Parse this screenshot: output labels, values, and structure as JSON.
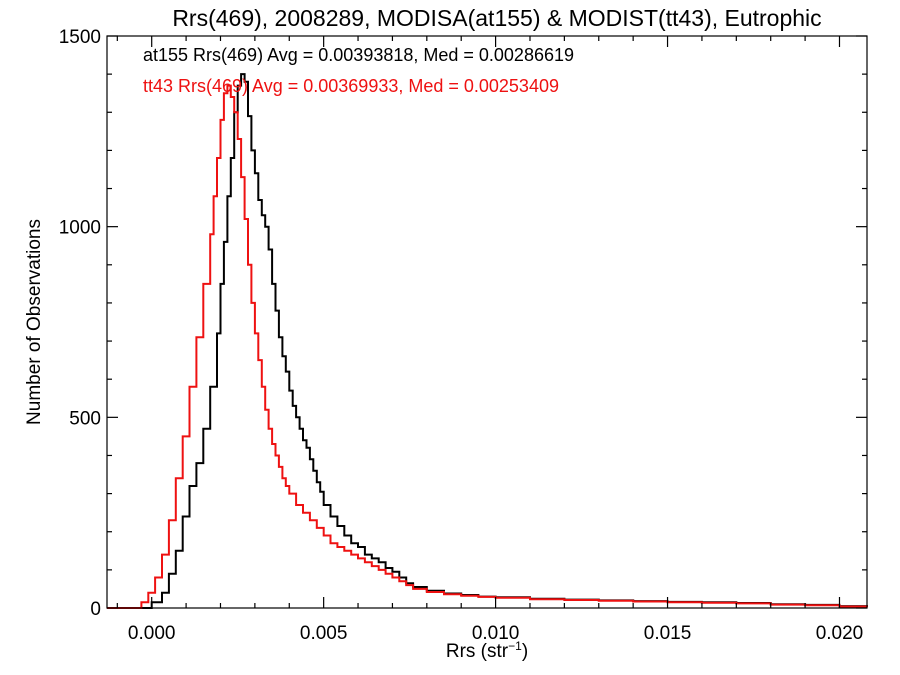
{
  "chart_data": {
    "type": "line",
    "step": true,
    "title": "Rrs(469), 2008289, MODISA(at155) & MODIST(tt43), Eutrophic",
    "xlabel_main": "Rrs (str",
    "xlabel_sup": "−1",
    "xlabel_close": ")",
    "ylabel": "Number of Observations",
    "xlim": [
      -0.0013,
      0.0208
    ],
    "ylim": [
      0,
      1500
    ],
    "x_ticks": [
      {
        "value": 0.0,
        "label": "0.000"
      },
      {
        "value": 0.005,
        "label": "0.005"
      },
      {
        "value": 0.01,
        "label": "0.010"
      },
      {
        "value": 0.015,
        "label": "0.015"
      },
      {
        "value": 0.02,
        "label": "0.020"
      }
    ],
    "y_ticks": [
      {
        "value": 0,
        "label": "0"
      },
      {
        "value": 500,
        "label": "500"
      },
      {
        "value": 1000,
        "label": "1000"
      },
      {
        "value": 1500,
        "label": "1500"
      }
    ],
    "legend_position": "top-left",
    "colors": {
      "at155": "#000000",
      "tt43": "#ee1111"
    },
    "series": [
      {
        "key": "at155",
        "label": "at155 Rrs(469) Avg = 0.00393818, Med = 0.00286619",
        "color": "#000000",
        "points": [
          [
            -0.0013,
            0
          ],
          [
            -0.0002,
            0
          ],
          [
            0.0,
            15
          ],
          [
            0.0003,
            40
          ],
          [
            0.0005,
            90
          ],
          [
            0.0007,
            150
          ],
          [
            0.0009,
            240
          ],
          [
            0.0011,
            320
          ],
          [
            0.0013,
            380
          ],
          [
            0.0015,
            470
          ],
          [
            0.0017,
            580
          ],
          [
            0.0019,
            720
          ],
          [
            0.002,
            850
          ],
          [
            0.0021,
            960
          ],
          [
            0.0022,
            1080
          ],
          [
            0.0023,
            1180
          ],
          [
            0.0024,
            1300
          ],
          [
            0.0025,
            1370
          ],
          [
            0.0026,
            1400
          ],
          [
            0.0027,
            1380
          ],
          [
            0.0028,
            1290
          ],
          [
            0.0029,
            1200
          ],
          [
            0.003,
            1140
          ],
          [
            0.0031,
            1070
          ],
          [
            0.0032,
            1030
          ],
          [
            0.0033,
            1000
          ],
          [
            0.0034,
            940
          ],
          [
            0.0035,
            850
          ],
          [
            0.0036,
            780
          ],
          [
            0.0037,
            710
          ],
          [
            0.0038,
            660
          ],
          [
            0.0039,
            620
          ],
          [
            0.004,
            570
          ],
          [
            0.0041,
            530
          ],
          [
            0.0042,
            500
          ],
          [
            0.0043,
            470
          ],
          [
            0.0044,
            440
          ],
          [
            0.0045,
            420
          ],
          [
            0.0046,
            390
          ],
          [
            0.0047,
            360
          ],
          [
            0.0048,
            330
          ],
          [
            0.0049,
            305
          ],
          [
            0.005,
            270
          ],
          [
            0.0052,
            240
          ],
          [
            0.0054,
            215
          ],
          [
            0.0056,
            190
          ],
          [
            0.0058,
            170
          ],
          [
            0.006,
            160
          ],
          [
            0.0062,
            140
          ],
          [
            0.0064,
            130
          ],
          [
            0.0066,
            120
          ],
          [
            0.0068,
            105
          ],
          [
            0.007,
            95
          ],
          [
            0.0072,
            80
          ],
          [
            0.0074,
            65
          ],
          [
            0.0076,
            55
          ],
          [
            0.008,
            45
          ],
          [
            0.0085,
            38
          ],
          [
            0.009,
            34
          ],
          [
            0.0095,
            30
          ],
          [
            0.01,
            28
          ],
          [
            0.011,
            24
          ],
          [
            0.012,
            22
          ],
          [
            0.013,
            20
          ],
          [
            0.014,
            18
          ],
          [
            0.015,
            16
          ],
          [
            0.016,
            15
          ],
          [
            0.017,
            13
          ],
          [
            0.018,
            10
          ],
          [
            0.019,
            8
          ],
          [
            0.02,
            5
          ],
          [
            0.0208,
            3
          ]
        ]
      },
      {
        "key": "tt43",
        "label": "tt43 Rrs(469) Avg = 0.00369933, Med = 0.00253409",
        "color": "#ee1111",
        "points": [
          [
            -0.0013,
            0
          ],
          [
            -0.0005,
            0
          ],
          [
            -0.0003,
            15
          ],
          [
            -0.0001,
            40
          ],
          [
            0.0001,
            80
          ],
          [
            0.0003,
            140
          ],
          [
            0.0005,
            230
          ],
          [
            0.0007,
            340
          ],
          [
            0.0009,
            450
          ],
          [
            0.0011,
            580
          ],
          [
            0.0013,
            710
          ],
          [
            0.0015,
            850
          ],
          [
            0.0017,
            980
          ],
          [
            0.0018,
            1080
          ],
          [
            0.0019,
            1180
          ],
          [
            0.002,
            1280
          ],
          [
            0.0021,
            1350
          ],
          [
            0.0022,
            1370
          ],
          [
            0.0023,
            1340
          ],
          [
            0.0024,
            1300
          ],
          [
            0.0025,
            1230
          ],
          [
            0.0026,
            1130
          ],
          [
            0.0027,
            1020
          ],
          [
            0.0028,
            900
          ],
          [
            0.0029,
            800
          ],
          [
            0.003,
            720
          ],
          [
            0.0031,
            650
          ],
          [
            0.0032,
            580
          ],
          [
            0.0033,
            520
          ],
          [
            0.0034,
            470
          ],
          [
            0.0035,
            430
          ],
          [
            0.0036,
            400
          ],
          [
            0.0037,
            370
          ],
          [
            0.0038,
            340
          ],
          [
            0.0039,
            320
          ],
          [
            0.004,
            300
          ],
          [
            0.0042,
            270
          ],
          [
            0.0044,
            250
          ],
          [
            0.0046,
            230
          ],
          [
            0.0048,
            210
          ],
          [
            0.005,
            190
          ],
          [
            0.0052,
            170
          ],
          [
            0.0054,
            160
          ],
          [
            0.0056,
            150
          ],
          [
            0.0058,
            140
          ],
          [
            0.006,
            130
          ],
          [
            0.0062,
            120
          ],
          [
            0.0064,
            110
          ],
          [
            0.0066,
            100
          ],
          [
            0.0068,
            90
          ],
          [
            0.007,
            80
          ],
          [
            0.0072,
            70
          ],
          [
            0.0074,
            60
          ],
          [
            0.0076,
            50
          ],
          [
            0.008,
            42
          ],
          [
            0.0085,
            36
          ],
          [
            0.009,
            32
          ],
          [
            0.0095,
            29
          ],
          [
            0.01,
            27
          ],
          [
            0.011,
            23
          ],
          [
            0.012,
            21
          ],
          [
            0.013,
            19
          ],
          [
            0.014,
            17
          ],
          [
            0.015,
            15
          ],
          [
            0.016,
            14
          ],
          [
            0.017,
            12
          ],
          [
            0.018,
            9
          ],
          [
            0.019,
            7
          ],
          [
            0.02,
            4
          ],
          [
            0.0208,
            2
          ]
        ]
      }
    ]
  }
}
